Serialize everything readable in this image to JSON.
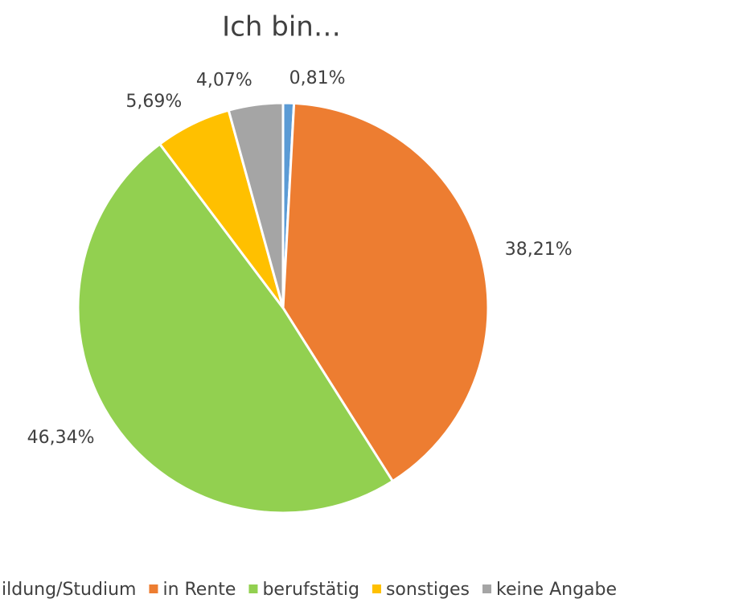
{
  "chart_data": {
    "type": "pie",
    "title": "Ich bin…",
    "categories": [
      "ildung/Studium",
      "in Rente",
      "berufstätig",
      "sonstiges",
      "keine Angabe"
    ],
    "values": [
      0.81,
      38.21,
      46.34,
      5.69,
      4.07
    ],
    "value_labels": [
      "0,81%",
      "38,21%",
      "46,34%",
      "5,69%",
      "4,07%"
    ],
    "colors": [
      "#5b9bd5",
      "#ed7d31",
      "#92d050",
      "#ffc000",
      "#a5a5a5"
    ],
    "legend": "bottom"
  }
}
